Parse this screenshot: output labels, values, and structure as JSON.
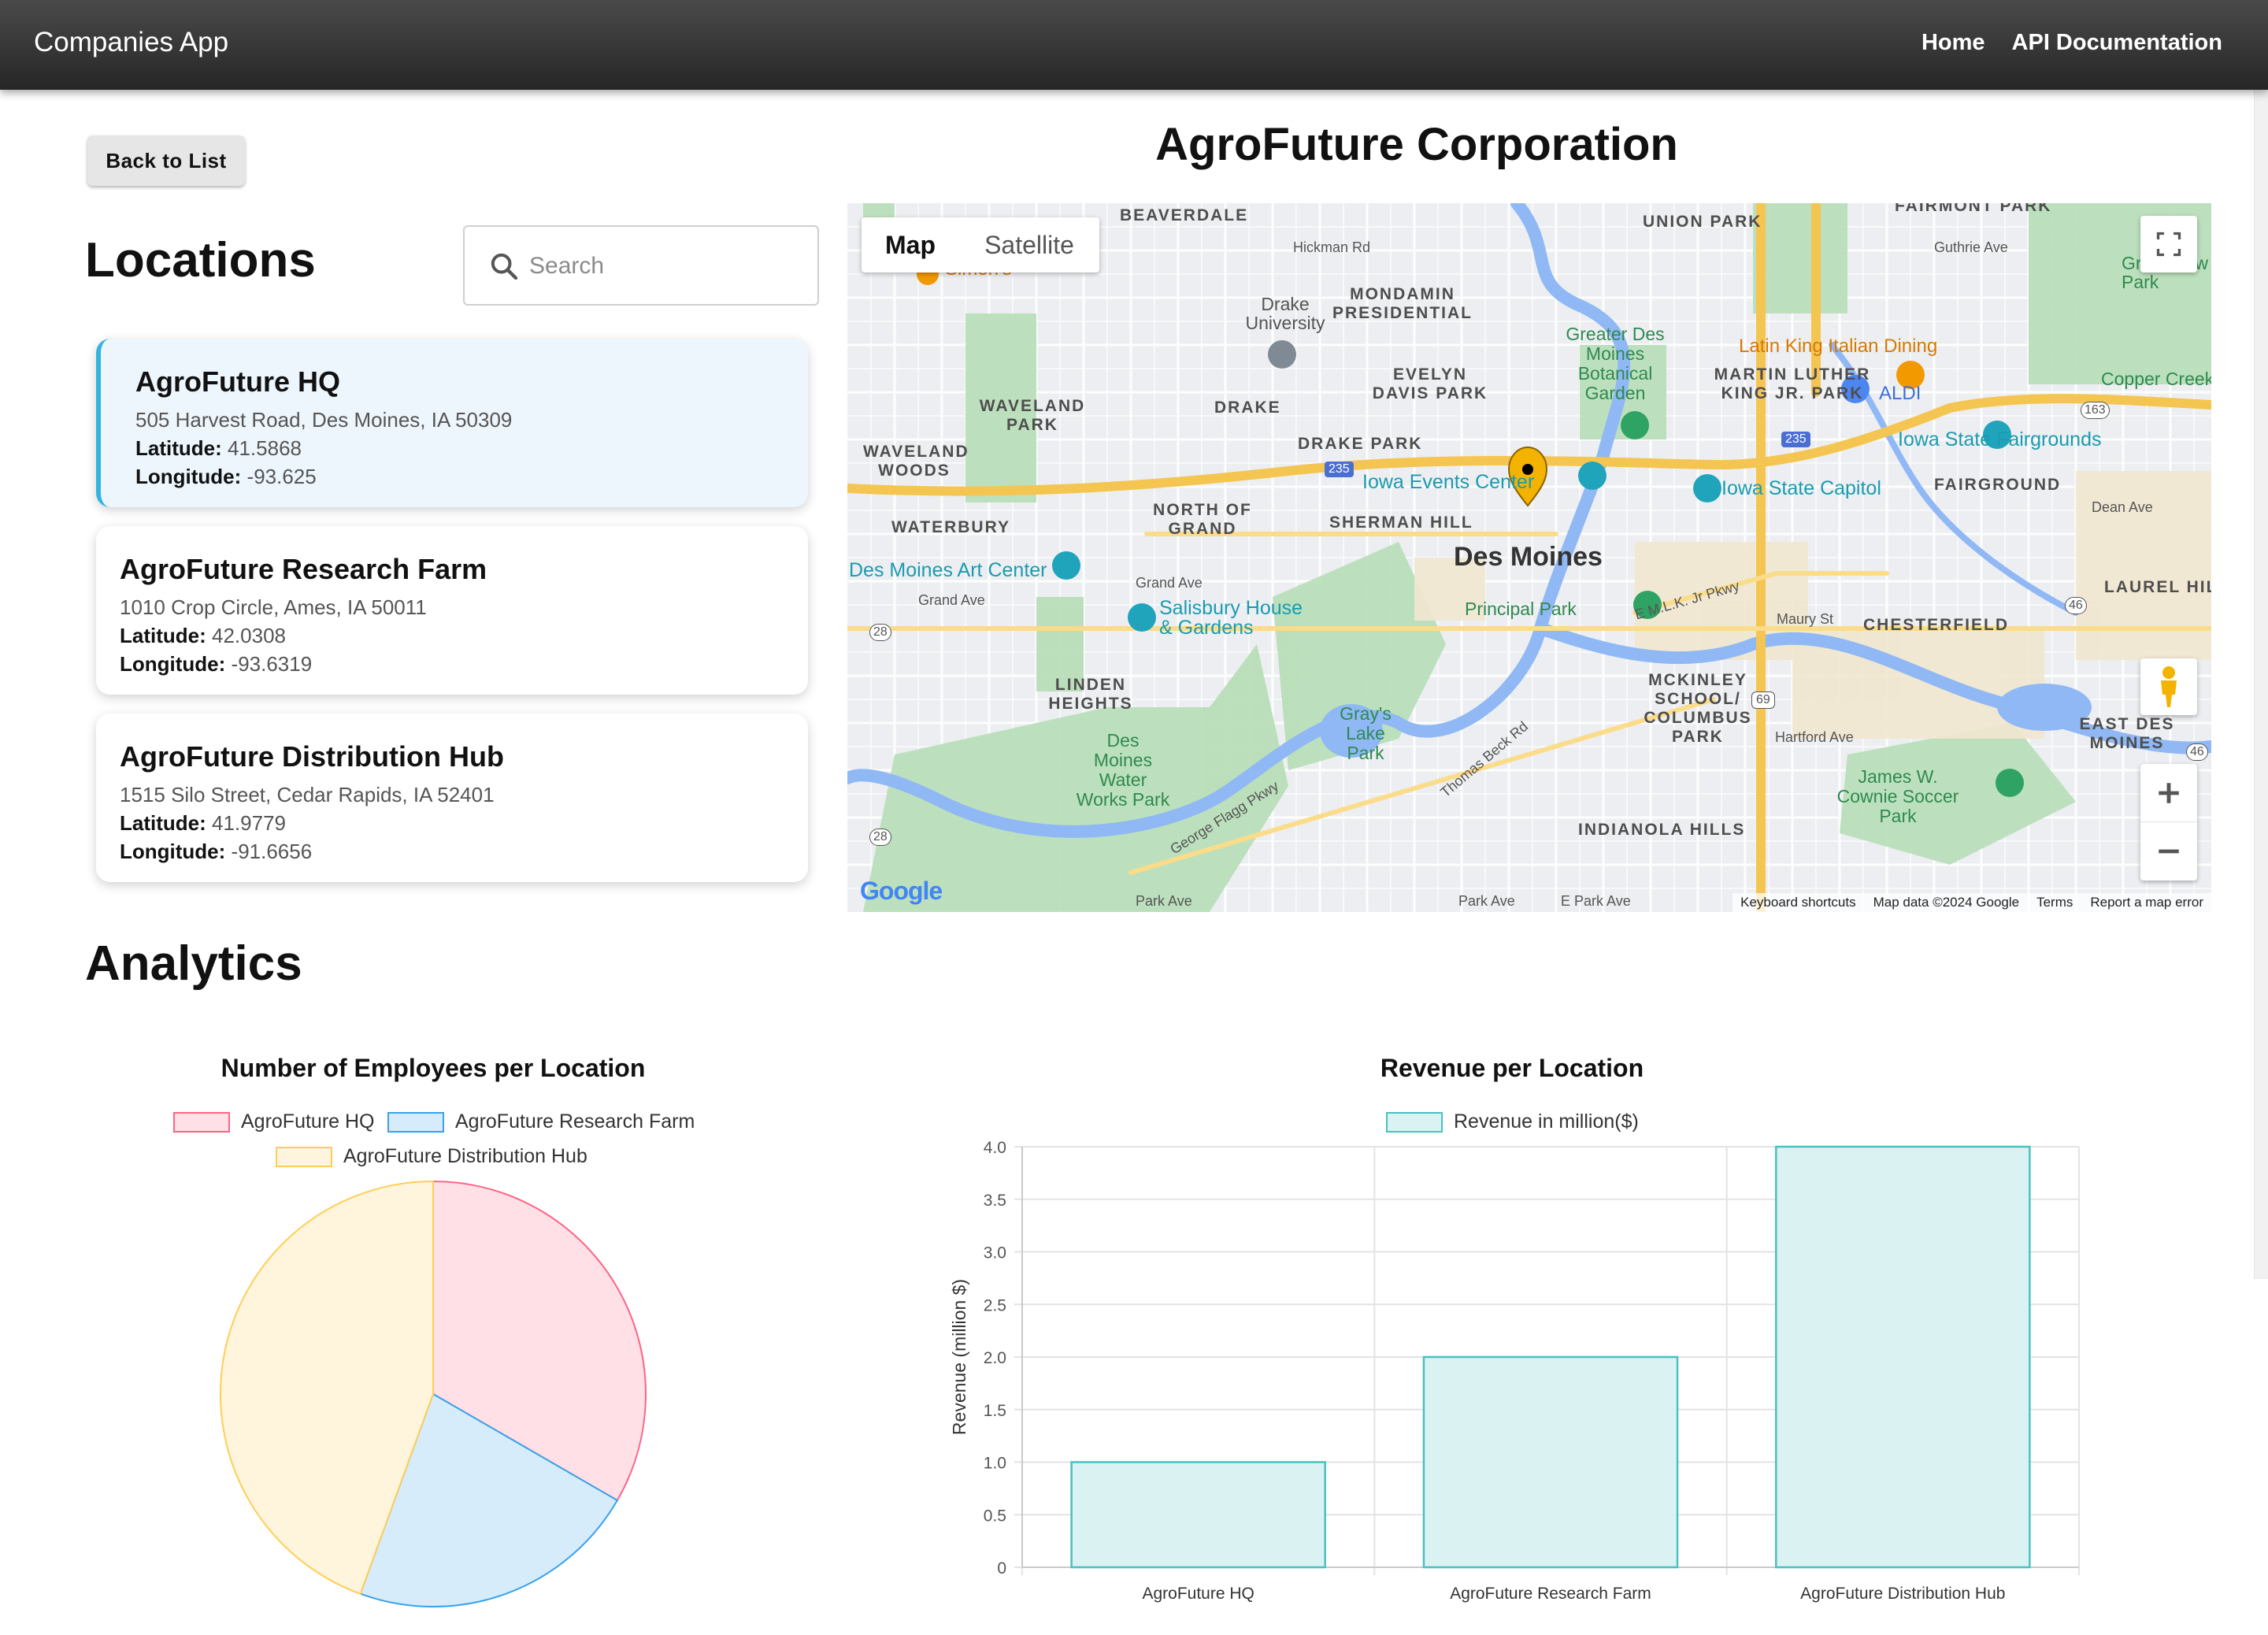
{
  "appbar": {
    "title": "Companies App",
    "nav": [
      "Home",
      "API Documentation"
    ]
  },
  "back_label": "Back to List",
  "company_name": "AgroFuture Corporation",
  "locations": {
    "heading": "Locations",
    "search_placeholder": "Search",
    "lat_label": "Latitude:",
    "lng_label": "Longitude:",
    "items": [
      {
        "name": "AgroFuture HQ",
        "address": "505 Harvest Road, Des Moines, IA 50309",
        "latitude": "41.5868",
        "longitude": "-93.625",
        "selected": true
      },
      {
        "name": "AgroFuture Research Farm",
        "address": "1010 Crop Circle, Ames, IA 50011",
        "latitude": "42.0308",
        "longitude": "-93.6319",
        "selected": false
      },
      {
        "name": "AgroFuture Distribution Hub",
        "address": "1515 Silo Street, Cedar Rapids, IA 52401",
        "latitude": "41.9779",
        "longitude": "-91.6656",
        "selected": false
      }
    ]
  },
  "map": {
    "toggle": [
      "Map",
      "Satellite"
    ],
    "google_logo": "Google",
    "footer": [
      "Keyboard shortcuts",
      "Map data ©2024 Google",
      "Terms",
      "Report a map error"
    ],
    "city_label": "Des Moines",
    "labels": {
      "beaverdale": "BEAVERDALE",
      "union_park": "UNION PARK",
      "fairmont_park": "FAIRMONT PARK",
      "grandview_park": "Grandview Park",
      "hickman_rd": "Hickman Rd",
      "guthrie_ave": "Guthrie Ave",
      "simons": "Simon's",
      "drake_university": "Drake University",
      "mondamin": "MONDAMIN PRESIDENTIAL",
      "greater_des_moines": "Greater Des Moines Botanical Garden",
      "latin_king": "Latin King Italian Dining",
      "aldi": "ALDI",
      "copper_creek": "Copper Creek",
      "evelyn_davis": "EVELYN DAVIS PARK",
      "mlk_park": "MARTIN LUTHER KING JR. PARK",
      "waveland_park": "WAVELAND PARK",
      "drake": "DRAKE",
      "drake_park": "DRAKE PARK",
      "iowa_fairgrounds": "Iowa State Fairgrounds",
      "waveland_woods": "WAVELAND WOODS",
      "iowa_events": "Iowa Events Center",
      "iowa_capitol": "Iowa State Capitol",
      "fairground": "FAIRGROUND",
      "waterbury": "WATERBURY",
      "north_of_grand": "NORTH OF GRAND",
      "sherman_hill": "SHERMAN HILL",
      "dean_ave": "Dean Ave",
      "art_center": "Des Moines Art Center",
      "grand_ave": "Grand Ave",
      "salisbury": "Salisbury House & Gardens",
      "principal_park": "Principal Park",
      "emlk_pkwy": "E M.L.K. Jr Pkwy",
      "maury_st": "Maury St",
      "chesterfield": "CHESTERFIELD",
      "laurel_hill": "LAUREL HILL",
      "linden_heights": "LINDEN HEIGHTS",
      "mckinley": "MCKINLEY SCHOOL/ COLUMBUS PARK",
      "grays_lake": "Gray's Lake Park",
      "waterworks": "Des Moines Water Works Park",
      "hartford_ave": "Hartford Ave",
      "east_des_moines": "EAST DES MOINES",
      "james_cownie": "James W. Cownie Soccer Park",
      "indianola_hills": "INDIANOLA HILLS",
      "park_ave": "Park Ave",
      "e_park_ave": "E Park Ave",
      "george_flagg": "George Flagg Pkwy",
      "thomas_beck": "Thomas Beck Rd",
      "i235": "235",
      "us69": "69",
      "hwy28": "28",
      "hwy163": "163",
      "hwy46": "46"
    }
  },
  "analytics": {
    "heading": "Analytics"
  },
  "colors": {
    "pie_fill": [
      "#ffe0e6",
      "#d7ecfb",
      "#fff5dd"
    ],
    "pie_border": [
      "#ff6384",
      "#36a2eb",
      "#ffce56"
    ],
    "bar_fill": "#dbf2f2",
    "bar_border": "#4bc0c0",
    "accent": "#35b3e0"
  },
  "chart_data": [
    {
      "type": "pie",
      "title": "Number of Employees per Location",
      "categories": [
        "AgroFuture HQ",
        "AgroFuture Research Farm",
        "AgroFuture Distribution Hub"
      ],
      "values": [
        150,
        100,
        200
      ],
      "legend": "top"
    },
    {
      "type": "bar",
      "title": "Revenue per Location",
      "categories": [
        "AgroFuture HQ",
        "AgroFuture Research Farm",
        "AgroFuture Distribution Hub"
      ],
      "series": [
        {
          "name": "Revenue in million($)",
          "values": [
            1.0,
            2.0,
            4.0
          ]
        }
      ],
      "ylabel": "Revenue (million $)",
      "yticks": [
        "0",
        "0.5",
        "1.0",
        "1.5",
        "2.0",
        "2.5",
        "3.0",
        "3.5",
        "4.0"
      ],
      "ylim": [
        0,
        4
      ],
      "grid": true,
      "legend": "top"
    }
  ]
}
